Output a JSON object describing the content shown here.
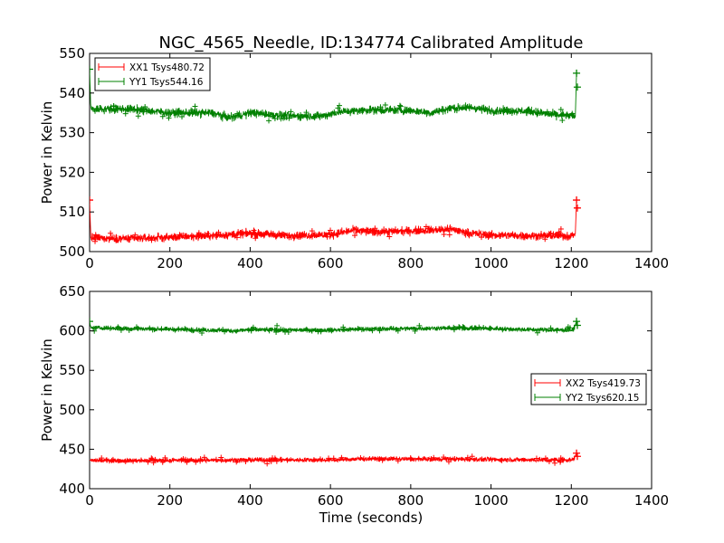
{
  "figure": {
    "title": "NGC_4565_Needle, ID:134774 Calibrated Amplitude",
    "xlabel": "Time (seconds)"
  },
  "chart_data": [
    {
      "type": "line",
      "ylabel": "Power in Kelvin",
      "xlim": [
        0,
        1400
      ],
      "ylim": [
        500,
        550
      ],
      "x_ticks": [
        0,
        200,
        400,
        600,
        800,
        1000,
        1200,
        1400
      ],
      "y_ticks": [
        500,
        510,
        520,
        530,
        540,
        550
      ],
      "legend_position": "upper-left",
      "series": [
        {
          "name": "XX1 Tsys480.72",
          "color": "#ff0000",
          "noise": 0.9,
          "points": [
            [
              0,
              513
            ],
            [
              3,
              503.5
            ],
            [
              100,
              503.3
            ],
            [
              200,
              503.6
            ],
            [
              300,
              504.0
            ],
            [
              400,
              504.6
            ],
            [
              500,
              504.0
            ],
            [
              600,
              504.3
            ],
            [
              660,
              505.4
            ],
            [
              700,
              505.0
            ],
            [
              800,
              505.2
            ],
            [
              900,
              505.6
            ],
            [
              950,
              504.6
            ],
            [
              1000,
              504.2
            ],
            [
              1100,
              504.0
            ],
            [
              1200,
              504.0
            ],
            [
              1210,
              504.5
            ],
            [
              1213,
              513
            ]
          ],
          "spikes": [
            [
              0,
              513
            ],
            [
              1213,
              513
            ],
            [
              1215,
              511
            ]
          ]
        },
        {
          "name": "YY1 Tsys544.16",
          "color": "#008000",
          "noise": 0.9,
          "points": [
            [
              0,
              546
            ],
            [
              3,
              536.0
            ],
            [
              100,
              536.0
            ],
            [
              200,
              535.0
            ],
            [
              300,
              535.0
            ],
            [
              350,
              533.8
            ],
            [
              400,
              535.0
            ],
            [
              500,
              534.2
            ],
            [
              580,
              534.2
            ],
            [
              620,
              535.2
            ],
            [
              700,
              535.8
            ],
            [
              800,
              535.6
            ],
            [
              850,
              535.0
            ],
            [
              900,
              536.2
            ],
            [
              950,
              536.4
            ],
            [
              1000,
              535.6
            ],
            [
              1100,
              535.4
            ],
            [
              1150,
              534.6
            ],
            [
              1200,
              534.2
            ],
            [
              1210,
              534.0
            ],
            [
              1213,
              545
            ]
          ],
          "spikes": [
            [
              0,
              546
            ],
            [
              1213,
              545
            ],
            [
              1215,
              541.5
            ]
          ]
        }
      ]
    },
    {
      "type": "line",
      "ylabel": "Power in Kelvin",
      "xlim": [
        0,
        1400
      ],
      "ylim": [
        400,
        650
      ],
      "x_ticks": [
        0,
        200,
        400,
        600,
        800,
        1000,
        1200,
        1400
      ],
      "y_ticks": [
        400,
        450,
        500,
        550,
        600,
        650
      ],
      "legend_position": "center-right",
      "series": [
        {
          "name": "XX2 Tsys419.73",
          "color": "#ff0000",
          "noise": 2.5,
          "points": [
            [
              0,
              436
            ],
            [
              100,
              435.5
            ],
            [
              200,
              436
            ],
            [
              300,
              436
            ],
            [
              400,
              436.5
            ],
            [
              600,
              436.5
            ],
            [
              700,
              438
            ],
            [
              800,
              437.5
            ],
            [
              900,
              437.5
            ],
            [
              1000,
              437
            ],
            [
              1100,
              436.5
            ],
            [
              1205,
              436.5
            ],
            [
              1213,
              445
            ]
          ],
          "spikes": [
            [
              1213,
              445
            ],
            [
              1215,
              441
            ]
          ]
        },
        {
          "name": "YY2 Tsys620.15",
          "color": "#008000",
          "noise": 2.5,
          "points": [
            [
              0,
              612
            ],
            [
              3,
              604
            ],
            [
              100,
              603
            ],
            [
              200,
              602
            ],
            [
              300,
              601
            ],
            [
              360,
              600
            ],
            [
              400,
              601.5
            ],
            [
              500,
              601
            ],
            [
              600,
              601
            ],
            [
              700,
              602.5
            ],
            [
              800,
              603
            ],
            [
              900,
              603.5
            ],
            [
              1000,
              603
            ],
            [
              1100,
              601.5
            ],
            [
              1205,
              601
            ],
            [
              1213,
              612
            ]
          ],
          "spikes": [
            [
              0,
              612
            ],
            [
              1213,
              612
            ],
            [
              1215,
              607
            ]
          ]
        }
      ]
    }
  ]
}
